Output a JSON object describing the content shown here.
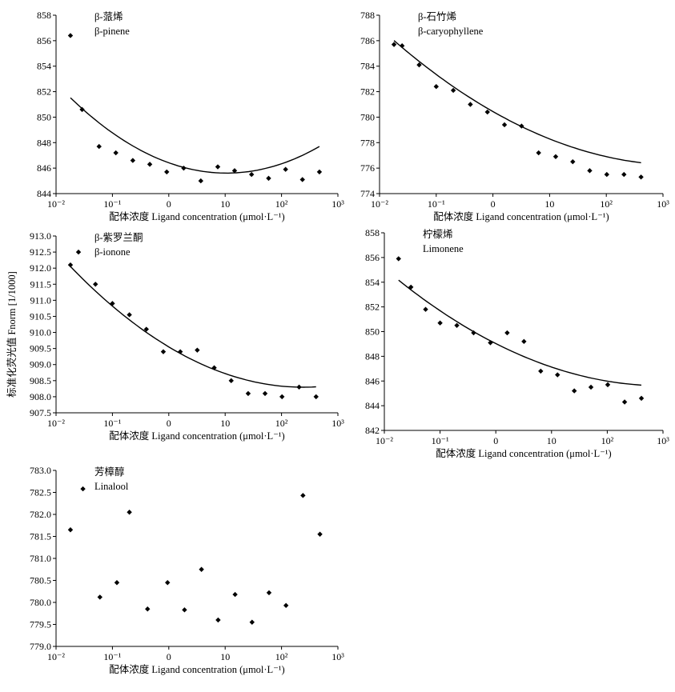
{
  "figure": {
    "ylabel": "标准化荧光值 Fnorm [1/1000]"
  },
  "chart_data": [
    {
      "type": "scatter",
      "title_cn": "β-蒎烯",
      "title_en": "β-pinene",
      "xlabel": "配体浓度 Ligand concentration (μmol·L⁻¹)",
      "xscale": "log",
      "xlim": [
        0.01,
        1000
      ],
      "ylim": [
        844,
        858
      ],
      "yticks": [
        844,
        846,
        848,
        850,
        852,
        854,
        856,
        858
      ],
      "xtick_labels": [
        "10⁻²",
        "10⁻¹",
        "0",
        "10",
        "10²",
        "10³"
      ],
      "points": [
        {
          "x": 0.018,
          "y": 856.4
        },
        {
          "x": 0.029,
          "y": 850.6
        },
        {
          "x": 0.058,
          "y": 847.7
        },
        {
          "x": 0.115,
          "y": 847.2
        },
        {
          "x": 0.23,
          "y": 846.6
        },
        {
          "x": 0.46,
          "y": 846.3
        },
        {
          "x": 0.92,
          "y": 845.7
        },
        {
          "x": 1.84,
          "y": 846.0
        },
        {
          "x": 3.7,
          "y": 845.0
        },
        {
          "x": 7.4,
          "y": 846.1
        },
        {
          "x": 14.7,
          "y": 845.8
        },
        {
          "x": 29.4,
          "y": 845.5
        },
        {
          "x": 59,
          "y": 845.2
        },
        {
          "x": 118,
          "y": 845.9
        },
        {
          "x": 235,
          "y": 845.1
        },
        {
          "x": 470,
          "y": 845.7
        }
      ],
      "fit": {
        "x0": 0.018,
        "x1": 470,
        "coef": [
          846.42,
          -1.58,
          0.77
        ]
      }
    },
    {
      "type": "scatter",
      "title_cn": "β-石竹烯",
      "title_en": "β-caryophyllene",
      "xlabel": "配体浓度 Ligand concentration (μmol·L⁻¹)",
      "xscale": "log",
      "xlim": [
        0.01,
        1000
      ],
      "ylim": [
        774,
        788
      ],
      "yticks": [
        774,
        776,
        778,
        780,
        782,
        784,
        786,
        788
      ],
      "xtick_labels": [
        "10⁻²",
        "10⁻¹",
        "0",
        "10",
        "10²",
        "10³"
      ],
      "points": [
        {
          "x": 0.018,
          "y": 785.7
        },
        {
          "x": 0.025,
          "y": 785.6
        },
        {
          "x": 0.05,
          "y": 784.1
        },
        {
          "x": 0.1,
          "y": 782.4
        },
        {
          "x": 0.2,
          "y": 782.1
        },
        {
          "x": 0.4,
          "y": 781.0
        },
        {
          "x": 0.8,
          "y": 780.4
        },
        {
          "x": 1.6,
          "y": 779.4
        },
        {
          "x": 3.2,
          "y": 779.3
        },
        {
          "x": 6.4,
          "y": 777.2
        },
        {
          "x": 12.8,
          "y": 776.9
        },
        {
          "x": 25.6,
          "y": 776.5
        },
        {
          "x": 51,
          "y": 775.8
        },
        {
          "x": 102,
          "y": 775.5
        },
        {
          "x": 205,
          "y": 775.5
        },
        {
          "x": 410,
          "y": 775.3
        }
      ],
      "fit": {
        "x0": 0.018,
        "x1": 410,
        "coef": [
          780.44,
          -2.53,
          0.38
        ]
      }
    },
    {
      "type": "scatter",
      "title_cn": "β-紫罗兰酮",
      "title_en": "β-ionone",
      "xlabel": "配体浓度 Ligand concentration (μmol·L⁻¹)",
      "xscale": "log",
      "xlim": [
        0.01,
        1000
      ],
      "ylim": [
        907.5,
        913.0
      ],
      "yticks": [
        907.5,
        908.0,
        908.5,
        909.0,
        909.5,
        910.0,
        910.5,
        911.0,
        911.5,
        912.0,
        912.5,
        913.0
      ],
      "ytick_labels": [
        "907.5",
        "908.0",
        "908.5",
        "909.0",
        "909.5",
        "910.0",
        "910.5",
        "911.0",
        "911.5",
        "912.0",
        "912.5",
        "913.0"
      ],
      "xtick_labels": [
        "10⁻²",
        "10⁻¹",
        "0",
        "10",
        "10²",
        "10³"
      ],
      "points": [
        {
          "x": 0.018,
          "y": 912.1
        },
        {
          "x": 0.025,
          "y": 912.5
        },
        {
          "x": 0.05,
          "y": 911.5
        },
        {
          "x": 0.1,
          "y": 910.9
        },
        {
          "x": 0.2,
          "y": 910.55
        },
        {
          "x": 0.4,
          "y": 910.1
        },
        {
          "x": 0.8,
          "y": 909.4
        },
        {
          "x": 1.6,
          "y": 909.4
        },
        {
          "x": 3.2,
          "y": 909.45
        },
        {
          "x": 6.4,
          "y": 908.9
        },
        {
          "x": 12.8,
          "y": 908.5
        },
        {
          "x": 25.6,
          "y": 908.1
        },
        {
          "x": 51,
          "y": 908.1
        },
        {
          "x": 102,
          "y": 908.0
        },
        {
          "x": 205,
          "y": 908.3
        },
        {
          "x": 410,
          "y": 908.0
        }
      ],
      "fit": {
        "x0": 0.018,
        "x1": 410,
        "coef": [
          909.55,
          -1.05,
          0.22
        ]
      }
    },
    {
      "type": "scatter",
      "title_cn": "柠檬烯",
      "title_en": "Limonene",
      "xlabel": "配体浓度 Ligand concentration (μmol·L⁻¹)",
      "xscale": "log",
      "xlim": [
        0.01,
        1000
      ],
      "ylim": [
        842,
        858
      ],
      "yticks": [
        842,
        844,
        846,
        848,
        850,
        852,
        854,
        856,
        858
      ],
      "xtick_labels": [
        "10⁻²",
        "10⁻¹",
        "0",
        "10",
        "10²",
        "10³"
      ],
      "points": [
        {
          "x": 0.018,
          "y": 855.9
        },
        {
          "x": 0.03,
          "y": 853.6
        },
        {
          "x": 0.055,
          "y": 851.8
        },
        {
          "x": 0.1,
          "y": 850.7
        },
        {
          "x": 0.2,
          "y": 850.5
        },
        {
          "x": 0.4,
          "y": 849.9
        },
        {
          "x": 0.8,
          "y": 849.1
        },
        {
          "x": 1.6,
          "y": 849.9
        },
        {
          "x": 3.2,
          "y": 849.2
        },
        {
          "x": 6.4,
          "y": 846.8
        },
        {
          "x": 12.8,
          "y": 846.5
        },
        {
          "x": 25.6,
          "y": 845.2
        },
        {
          "x": 51,
          "y": 845.5
        },
        {
          "x": 102,
          "y": 845.7
        },
        {
          "x": 205,
          "y": 844.3
        },
        {
          "x": 410,
          "y": 844.6
        }
      ],
      "fit": {
        "x0": 0.018,
        "x1": 410,
        "coef": [
          849.03,
          -2.28,
          0.38
        ]
      }
    },
    {
      "type": "scatter",
      "title_cn": "芳樟醇",
      "title_en": "Linalool",
      "xlabel": "配体浓度 Ligand concentration (μmol·L⁻¹)",
      "xscale": "log",
      "xlim": [
        0.01,
        1000
      ],
      "ylim": [
        779.0,
        783.0
      ],
      "yticks": [
        779.0,
        779.5,
        780.0,
        780.5,
        781.0,
        781.5,
        782.0,
        782.5,
        783.0
      ],
      "ytick_labels": [
        "779.0",
        "779.5",
        "780.0",
        "780.5",
        "781.0",
        "781.5",
        "782.0",
        "782.5",
        "783.0"
      ],
      "xtick_labels": [
        "10⁻²",
        "10⁻¹",
        "0",
        "10",
        "10²",
        "10³"
      ],
      "points": [
        {
          "x": 0.018,
          "y": 781.65
        },
        {
          "x": 0.03,
          "y": 782.58
        },
        {
          "x": 0.06,
          "y": 780.12
        },
        {
          "x": 0.12,
          "y": 780.45
        },
        {
          "x": 0.2,
          "y": 782.05
        },
        {
          "x": 0.42,
          "y": 779.85
        },
        {
          "x": 0.95,
          "y": 780.45
        },
        {
          "x": 1.9,
          "y": 779.83
        },
        {
          "x": 3.8,
          "y": 780.75
        },
        {
          "x": 7.5,
          "y": 779.6
        },
        {
          "x": 15,
          "y": 780.18
        },
        {
          "x": 30,
          "y": 779.55
        },
        {
          "x": 60,
          "y": 780.22
        },
        {
          "x": 120,
          "y": 779.93
        },
        {
          "x": 240,
          "y": 782.43
        },
        {
          "x": 480,
          "y": 781.55
        }
      ]
    }
  ]
}
